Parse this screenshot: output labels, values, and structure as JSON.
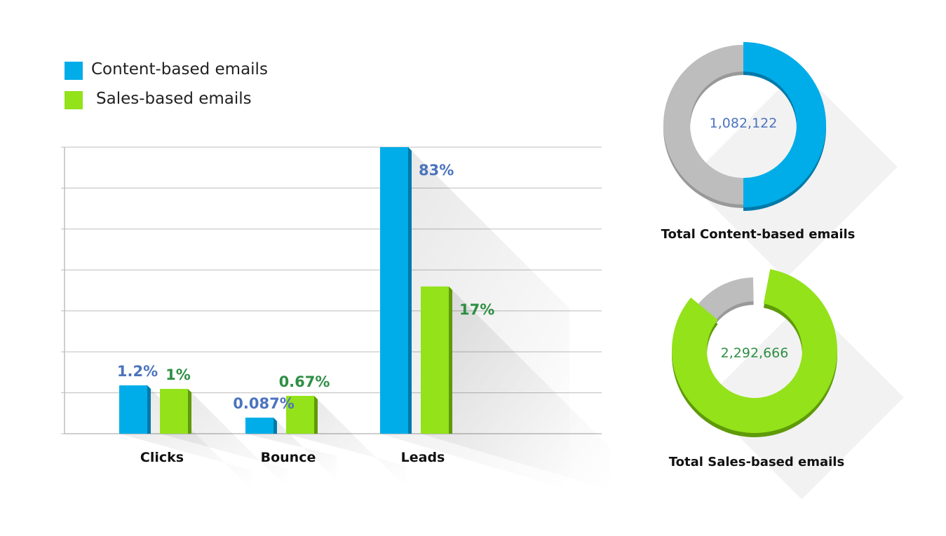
{
  "colors": {
    "content": "#00ade8",
    "content_dark": "#0079a9",
    "sales": "#93e21a",
    "sales_dark": "#5f9a0a",
    "content_label": "#4c74bd",
    "sales_label": "#2e8f44",
    "ring_gray": "#bdbdbd",
    "grid": "#bdbdbd"
  },
  "chart_data": [
    {
      "type": "bar",
      "title": "",
      "categories": [
        "Clicks",
        "Bounce",
        "Leads"
      ],
      "series": [
        {
          "name": "Content-based emails",
          "values": [
            1.2,
            0.087,
            83
          ],
          "labels": [
            "1.2%",
            "0.087%",
            "83%"
          ]
        },
        {
          "name": "Sales-based emails",
          "values": [
            1,
            0.67,
            17
          ],
          "labels": [
            "1%",
            "0.67%",
            "17%"
          ]
        }
      ],
      "legend": "top-left",
      "grid": true,
      "xlabel": "",
      "ylabel": ""
    },
    {
      "type": "pie",
      "title": "Total Content-based emails",
      "center_label": "1,082,122",
      "value": 1082122,
      "share": 0.5,
      "color": "content"
    },
    {
      "type": "pie",
      "title": "Total Sales-based emails",
      "center_label": "2,292,666",
      "value": 2292666,
      "share": 0.83,
      "color": "sales"
    }
  ]
}
